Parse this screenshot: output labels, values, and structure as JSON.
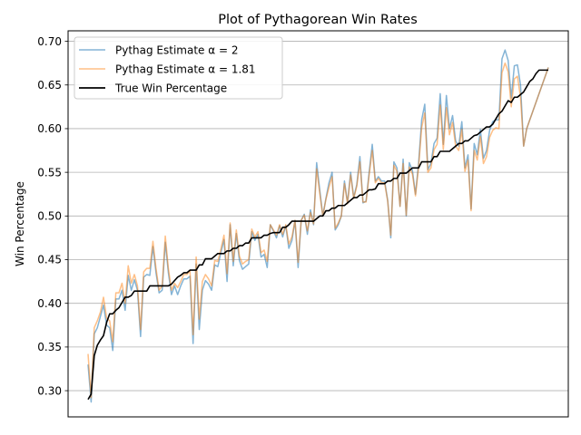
{
  "chart_data": {
    "type": "line",
    "title": "Plot of Pythagorean Win Rates",
    "xlabel": "",
    "ylabel": "Win Percentage",
    "ylim": [
      0.27,
      0.712
    ],
    "yticks": [
      0.3,
      0.35,
      0.4,
      0.45,
      0.5,
      0.55,
      0.6,
      0.65,
      0.7
    ],
    "grid": "horizontal",
    "legend_position": "upper-left",
    "x": [
      1,
      2,
      3,
      4,
      5,
      6,
      7,
      8,
      9,
      10,
      11,
      12,
      13,
      14,
      15,
      16,
      17,
      18,
      19,
      20,
      21,
      22,
      23,
      24,
      25,
      26,
      27,
      28,
      29,
      30,
      31,
      32,
      33,
      34,
      35,
      36,
      37,
      38,
      39,
      40,
      41,
      42,
      43,
      44,
      45,
      46,
      47,
      48,
      49,
      50,
      51,
      52,
      53,
      54,
      55,
      56,
      57,
      58,
      59,
      60,
      61,
      62,
      63,
      64,
      65,
      66,
      67,
      68,
      69,
      70,
      71,
      72,
      73,
      74,
      75,
      76,
      77,
      78,
      79,
      80,
      81,
      82,
      83,
      84,
      85,
      86,
      87,
      88,
      89,
      90,
      91,
      92,
      93,
      94,
      95,
      96,
      97,
      98,
      99,
      100,
      101,
      102,
      103,
      104,
      105,
      106,
      107,
      108,
      109,
      110,
      111,
      112,
      113,
      114,
      115,
      116,
      117,
      118,
      119,
      120,
      121,
      122,
      123,
      124,
      125,
      126,
      127,
      128,
      129,
      130,
      131,
      132,
      133,
      134,
      135,
      136,
      137,
      138,
      139,
      140,
      141,
      142,
      143,
      144,
      145,
      146,
      147,
      148,
      149,
      150
    ],
    "series": [
      {
        "name": "Pythag Estimate α = 2",
        "color": "#1f77b4",
        "opacity": 0.55,
        "values": [
          0.33,
          0.287,
          0.365,
          0.372,
          0.385,
          0.398,
          0.375,
          0.372,
          0.346,
          0.405,
          0.405,
          0.415,
          0.392,
          0.432,
          0.415,
          0.427,
          0.415,
          0.362,
          0.43,
          0.433,
          0.432,
          0.465,
          0.435,
          0.412,
          0.415,
          0.47,
          0.435,
          0.41,
          0.42,
          0.41,
          0.42,
          0.428,
          0.428,
          0.431,
          0.354,
          0.445,
          0.37,
          0.415,
          0.426,
          0.422,
          0.415,
          0.444,
          0.442,
          0.458,
          0.473,
          0.425,
          0.49,
          0.443,
          0.48,
          0.449,
          0.439,
          0.442,
          0.445,
          0.482,
          0.472,
          0.479,
          0.453,
          0.456,
          0.441,
          0.49,
          0.483,
          0.475,
          0.489,
          0.476,
          0.489,
          0.463,
          0.472,
          0.495,
          0.441,
          0.495,
          0.502,
          0.479,
          0.507,
          0.49,
          0.561,
          0.53,
          0.5,
          0.52,
          0.538,
          0.55,
          0.484,
          0.49,
          0.5,
          0.54,
          0.515,
          0.55,
          0.521,
          0.536,
          0.568,
          0.515,
          0.517,
          0.55,
          0.582,
          0.54,
          0.545,
          0.54,
          0.54,
          0.518,
          0.475,
          0.562,
          0.555,
          0.511,
          0.565,
          0.5,
          0.561,
          0.552,
          0.525,
          0.56,
          0.61,
          0.628,
          0.553,
          0.56,
          0.583,
          0.589,
          0.64,
          0.582,
          0.638,
          0.6,
          0.615,
          0.586,
          0.58,
          0.608,
          0.555,
          0.57,
          0.508,
          0.583,
          0.57,
          0.599,
          0.566,
          0.575,
          0.598,
          0.608,
          0.61,
          0.61,
          0.68,
          0.69,
          0.678,
          0.635,
          0.672,
          0.673,
          0.65,
          0.58,
          0.6,
          0.61,
          0.62,
          0.63,
          0.64,
          0.65,
          0.66,
          0.67
        ]
      },
      {
        "name": "Pythag Estimate α = 1.81",
        "color": "#ff7f0e",
        "opacity": 0.5,
        "values": [
          0.342,
          0.292,
          0.372,
          0.38,
          0.39,
          0.407,
          0.383,
          0.38,
          0.356,
          0.412,
          0.412,
          0.423,
          0.4,
          0.443,
          0.423,
          0.433,
          0.42,
          0.37,
          0.436,
          0.44,
          0.44,
          0.471,
          0.44,
          0.415,
          0.42,
          0.477,
          0.44,
          0.415,
          0.423,
          0.418,
          0.425,
          0.433,
          0.433,
          0.437,
          0.364,
          0.453,
          0.382,
          0.425,
          0.433,
          0.428,
          0.42,
          0.449,
          0.448,
          0.462,
          0.478,
          0.434,
          0.492,
          0.448,
          0.484,
          0.454,
          0.445,
          0.448,
          0.45,
          0.485,
          0.476,
          0.482,
          0.458,
          0.461,
          0.448,
          0.49,
          0.484,
          0.478,
          0.49,
          0.479,
          0.49,
          0.468,
          0.476,
          0.495,
          0.447,
          0.495,
          0.501,
          0.483,
          0.504,
          0.491,
          0.554,
          0.526,
          0.5,
          0.519,
          0.533,
          0.545,
          0.486,
          0.492,
          0.5,
          0.537,
          0.514,
          0.547,
          0.52,
          0.534,
          0.562,
          0.516,
          0.516,
          0.547,
          0.575,
          0.538,
          0.543,
          0.538,
          0.538,
          0.517,
          0.478,
          0.558,
          0.551,
          0.511,
          0.56,
          0.501,
          0.556,
          0.548,
          0.523,
          0.556,
          0.601,
          0.618,
          0.55,
          0.555,
          0.576,
          0.582,
          0.627,
          0.576,
          0.624,
          0.593,
          0.607,
          0.58,
          0.575,
          0.599,
          0.551,
          0.564,
          0.506,
          0.575,
          0.564,
          0.591,
          0.56,
          0.568,
          0.59,
          0.598,
          0.601,
          0.6,
          0.664,
          0.675,
          0.665,
          0.625,
          0.657,
          0.66,
          0.636,
          0.58,
          0.6,
          0.61,
          0.62,
          0.63,
          0.64,
          0.65,
          0.66,
          0.67
        ]
      },
      {
        "name": "True Win Percentage",
        "color": "#000000",
        "opacity": 1,
        "values": [
          0.29,
          0.296,
          0.34,
          0.352,
          0.358,
          0.363,
          0.378,
          0.388,
          0.388,
          0.392,
          0.395,
          0.401,
          0.407,
          0.407,
          0.409,
          0.414,
          0.414,
          0.414,
          0.414,
          0.414,
          0.42,
          0.42,
          0.42,
          0.42,
          0.42,
          0.42,
          0.42,
          0.422,
          0.426,
          0.43,
          0.432,
          0.435,
          0.435,
          0.438,
          0.438,
          0.438,
          0.444,
          0.444,
          0.451,
          0.451,
          0.451,
          0.454,
          0.457,
          0.457,
          0.457,
          0.46,
          0.46,
          0.463,
          0.463,
          0.466,
          0.466,
          0.469,
          0.469,
          0.475,
          0.475,
          0.475,
          0.475,
          0.478,
          0.478,
          0.48,
          0.481,
          0.481,
          0.481,
          0.487,
          0.487,
          0.49,
          0.494,
          0.494,
          0.494,
          0.494,
          0.494,
          0.494,
          0.494,
          0.494,
          0.497,
          0.5,
          0.5,
          0.506,
          0.506,
          0.509,
          0.509,
          0.512,
          0.512,
          0.512,
          0.515,
          0.518,
          0.521,
          0.521,
          0.524,
          0.524,
          0.527,
          0.53,
          0.53,
          0.531,
          0.537,
          0.537,
          0.537,
          0.54,
          0.54,
          0.543,
          0.543,
          0.549,
          0.549,
          0.549,
          0.552,
          0.555,
          0.555,
          0.555,
          0.562,
          0.562,
          0.562,
          0.562,
          0.568,
          0.568,
          0.574,
          0.574,
          0.574,
          0.574,
          0.577,
          0.58,
          0.583,
          0.583,
          0.586,
          0.586,
          0.589,
          0.592,
          0.593,
          0.596,
          0.599,
          0.602,
          0.602,
          0.605,
          0.611,
          0.617,
          0.62,
          0.626,
          0.632,
          0.63,
          0.636,
          0.636,
          0.639,
          0.642,
          0.648,
          0.654,
          0.657,
          0.663,
          0.667,
          0.667,
          0.667,
          0.667
        ]
      }
    ]
  }
}
